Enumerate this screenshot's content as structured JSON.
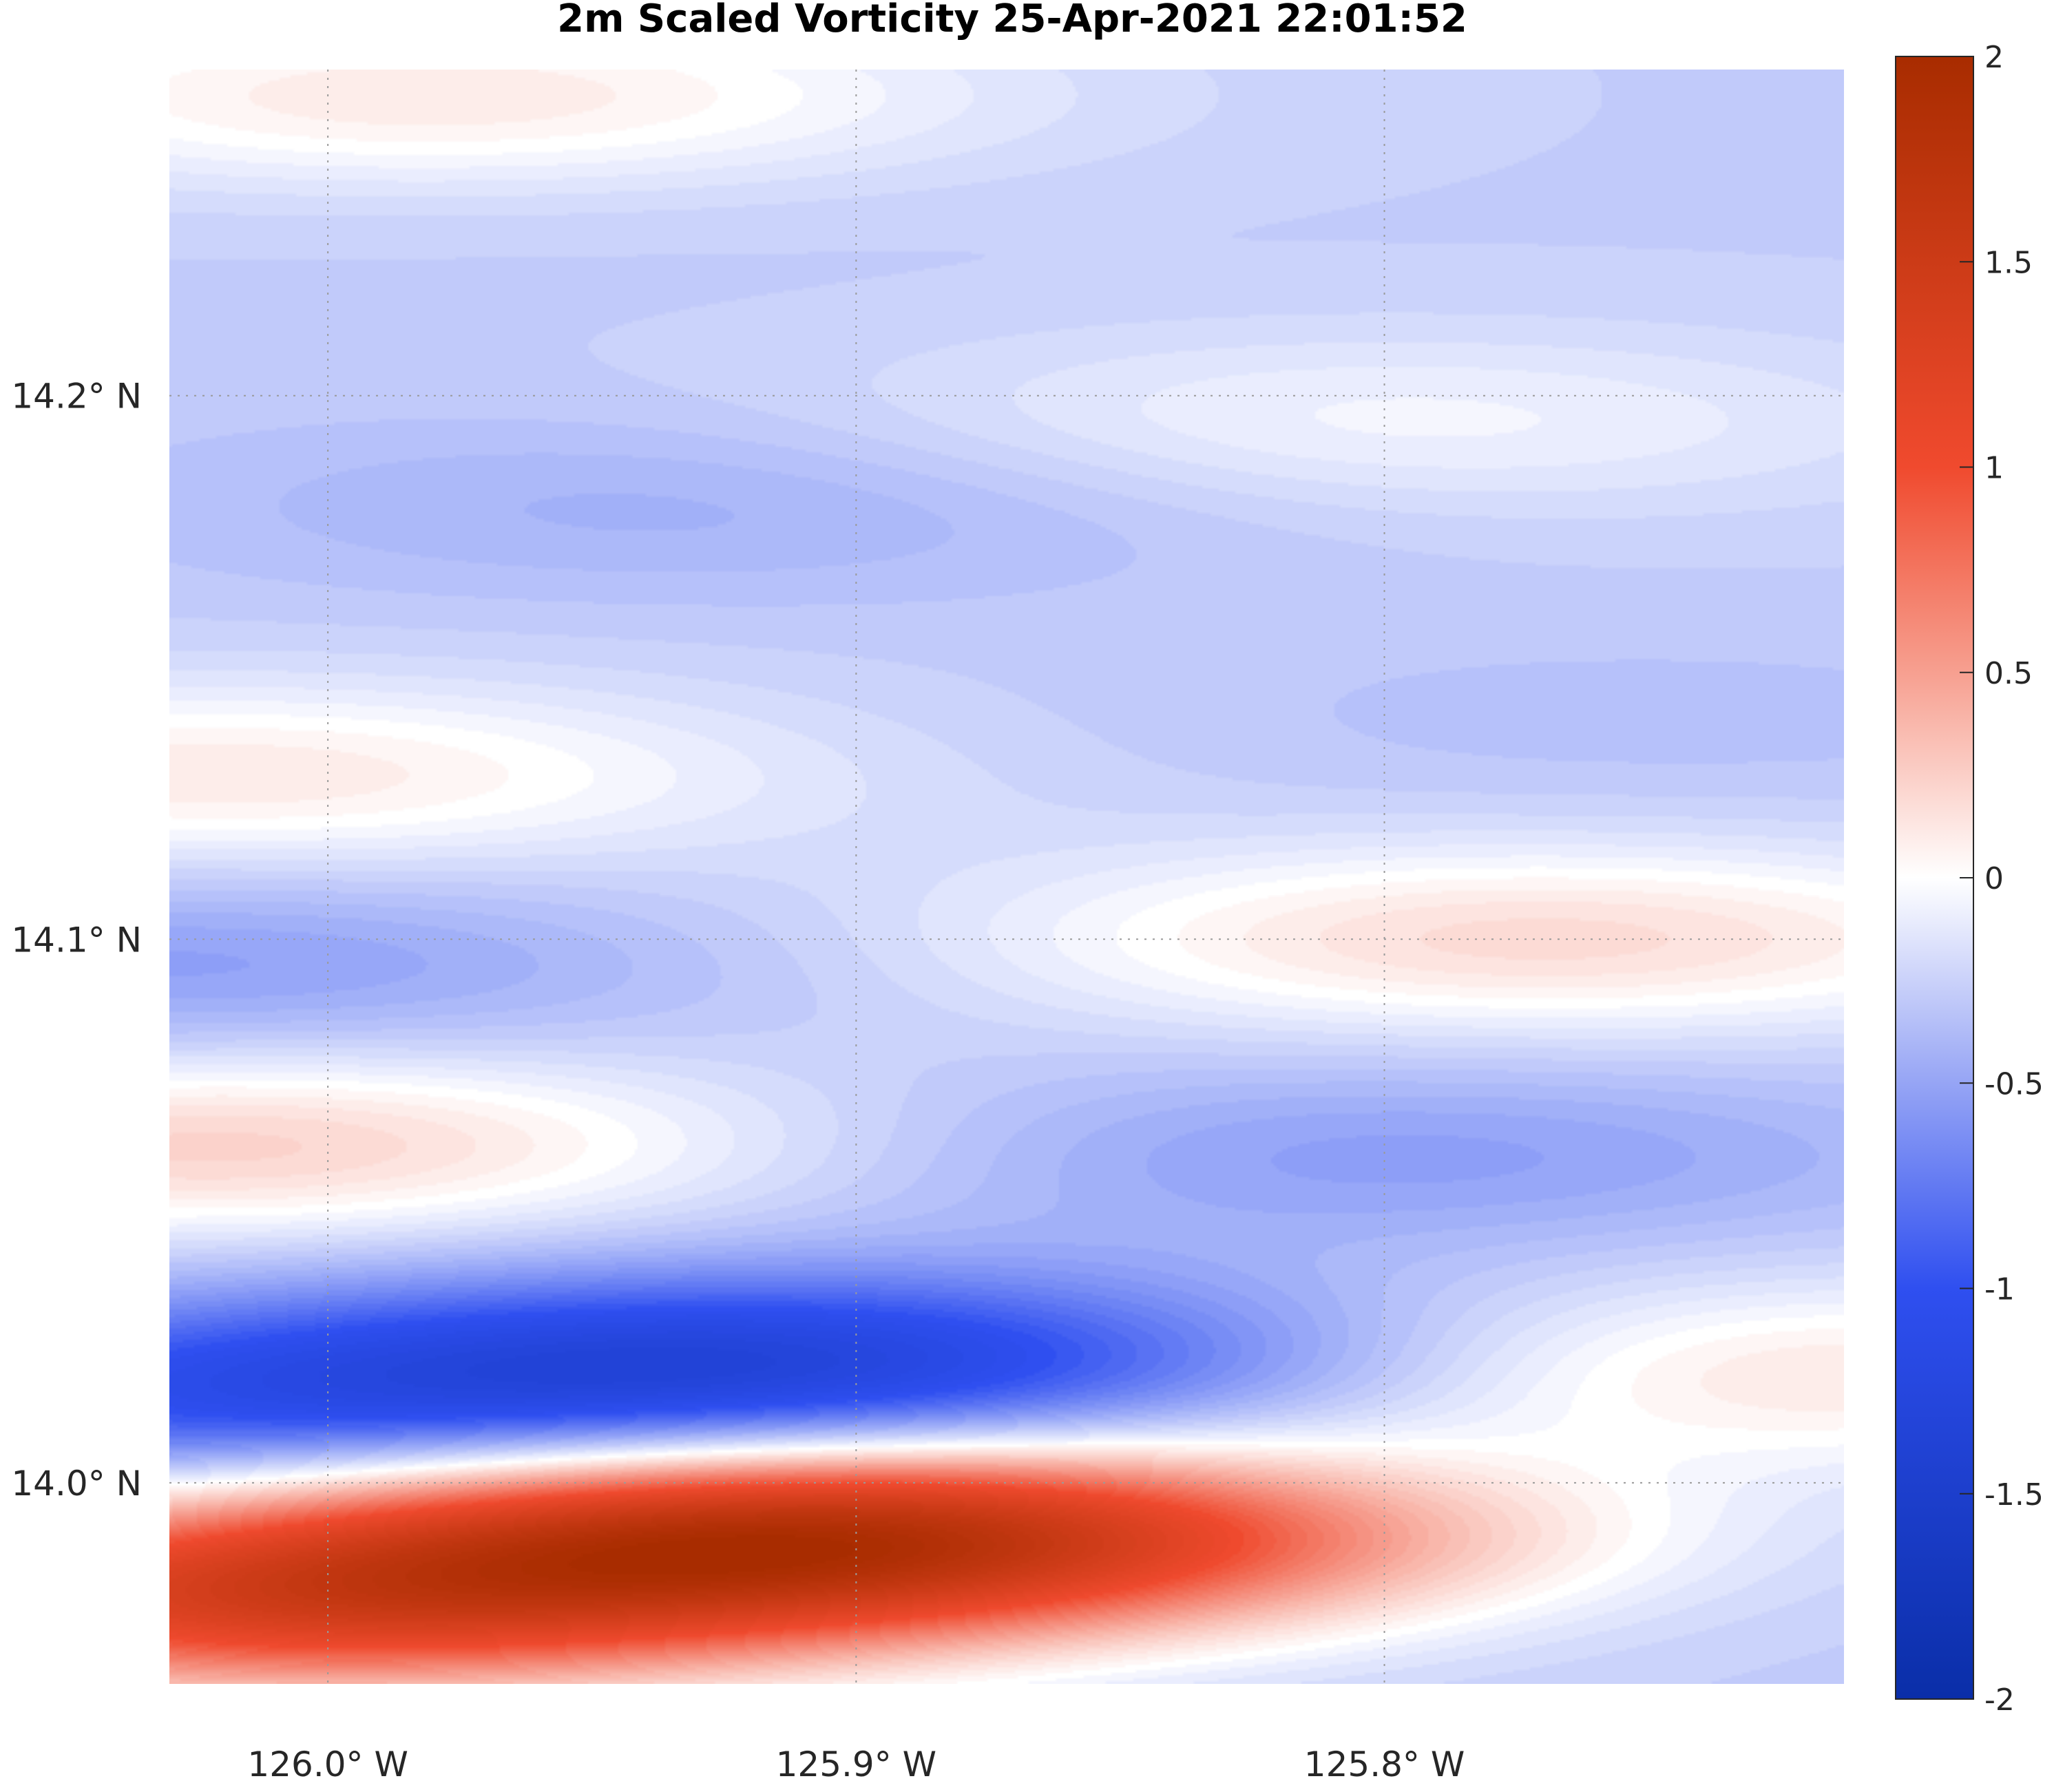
{
  "chart_data": {
    "type": "heatmap",
    "title": "2m Scaled Vorticity  25-Apr-2021 22:01:52",
    "x_ticks": [
      {
        "value": -126.0,
        "label": "126.0° W"
      },
      {
        "value": -125.9,
        "label": "125.9° W"
      },
      {
        "value": -125.8,
        "label": "125.8° W"
      }
    ],
    "y_ticks": [
      {
        "value": 14.2,
        "label": "14.2° N"
      },
      {
        "value": 14.1,
        "label": "14.1° N"
      },
      {
        "value": 14.0,
        "label": "14.0° N"
      }
    ],
    "xlim": [
      -126.03,
      -125.713
    ],
    "ylim": [
      13.963,
      14.26
    ],
    "grid": true,
    "colorbar": {
      "position": "right",
      "range": [
        -2,
        2
      ],
      "ticks": [
        "2",
        "1.5",
        "1",
        "0.5",
        "0",
        "-0.5",
        "-1",
        "-1.5",
        "-2"
      ],
      "colormap": "blue-white-red",
      "colors": {
        "min": "#0a2ea8",
        "zero": "#ffffff",
        "max": "#a82c00"
      }
    },
    "field_features": [
      {
        "lon": -125.9,
        "lat": 13.99,
        "value": 1.7
      },
      {
        "lon": -126.01,
        "lat": 13.978,
        "value": 1.1
      },
      {
        "lon": -125.91,
        "lat": 14.022,
        "value": -1.2
      },
      {
        "lon": -126.02,
        "lat": 14.015,
        "value": -0.9
      },
      {
        "lon": -125.8,
        "lat": 14.06,
        "value": -0.55
      },
      {
        "lon": -125.72,
        "lat": 14.02,
        "value": 0.15
      },
      {
        "lon": -125.77,
        "lat": 14.1,
        "value": 0.2
      },
      {
        "lon": -126.02,
        "lat": 14.062,
        "value": 0.25
      },
      {
        "lon": -126.02,
        "lat": 14.13,
        "value": 0.12
      },
      {
        "lon": -126.03,
        "lat": 14.095,
        "value": -0.55
      },
      {
        "lon": -125.93,
        "lat": 14.18,
        "value": -0.45
      },
      {
        "lon": -125.75,
        "lat": 14.14,
        "value": -0.35
      },
      {
        "lon": -125.8,
        "lat": 14.195,
        "value": -0.05
      },
      {
        "lon": -125.96,
        "lat": 14.235,
        "value": -0.3
      },
      {
        "lon": -125.98,
        "lat": 14.255,
        "value": 0.12
      },
      {
        "lon": -125.72,
        "lat": 13.975,
        "value": -0.3
      }
    ]
  }
}
